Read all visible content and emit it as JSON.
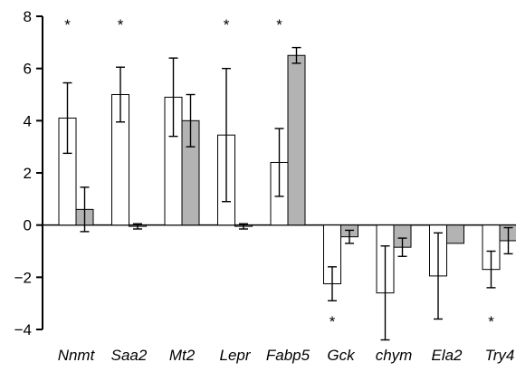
{
  "chart_data": {
    "type": "bar",
    "title": "",
    "xlabel": "",
    "ylabel": "",
    "ylim": [
      -4,
      8
    ],
    "yticks": [
      -4,
      -2,
      0,
      2,
      4,
      6,
      8
    ],
    "ytick_labels": [
      "−4",
      "−2",
      "0",
      "2",
      "4",
      "6",
      "8"
    ],
    "grid": false,
    "legend": "none",
    "categories": [
      "Nnmt",
      "Saa2",
      "Mt2",
      "Lepr",
      "Fabp5",
      "Gck",
      "chym",
      "Ela2",
      "Try4"
    ],
    "series": [
      {
        "fill": "#ffffff",
        "values": [
          4.1,
          5.0,
          4.9,
          3.45,
          2.4,
          -2.25,
          -2.6,
          -1.95,
          -1.7
        ],
        "errors": [
          1.35,
          1.05,
          1.5,
          2.55,
          1.3,
          0.65,
          1.8,
          1.65,
          0.7
        ]
      },
      {
        "fill": "#b3b3b3",
        "values": [
          0.6,
          -0.05,
          4.0,
          -0.05,
          6.5,
          -0.45,
          -0.85,
          -0.7,
          -0.6
        ],
        "errors": [
          0.85,
          0.1,
          1.0,
          0.1,
          0.3,
          0.25,
          0.35,
          0.0,
          0.5
        ]
      }
    ],
    "annotations": [
      {
        "category": "Nnmt",
        "text": "*",
        "position": "top"
      },
      {
        "category": "Saa2",
        "text": "*",
        "position": "top"
      },
      {
        "category": "Lepr",
        "text": "*",
        "position": "top"
      },
      {
        "category": "Fabp5",
        "text": "*",
        "position": "top"
      },
      {
        "category": "Gck",
        "text": "*",
        "position": "bottom"
      },
      {
        "category": "Try4",
        "text": "*",
        "position": "bottom"
      }
    ],
    "colors": {
      "axis": "#000000",
      "bar_stroke": "#000000"
    }
  }
}
